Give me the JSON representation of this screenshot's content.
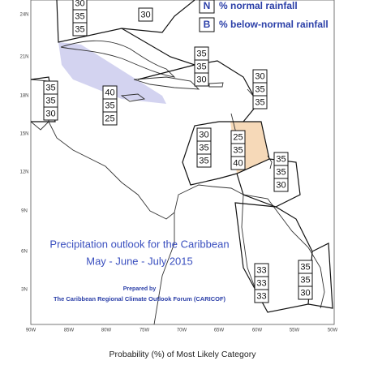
{
  "legend": {
    "n_key": "N",
    "n_text": "% normal rainfall",
    "b_key": "B",
    "b_text": "% below-normal rainfall"
  },
  "title": {
    "line1": "Precipitation outlook for the Caribbean",
    "line2": "May - June - July 2015",
    "prepared": "Prepared by",
    "forum": "The Caribbean Regional Climate Outlook Forum (CARICOF)"
  },
  "lat_labels": [
    "24N",
    "21N",
    "18N",
    "15N",
    "12N",
    "9N",
    "6N",
    "3N"
  ],
  "lon_labels": [
    "90W",
    "85W",
    "80W",
    "75W",
    "70W",
    "65W",
    "60W",
    "55W",
    "50W"
  ],
  "caption": "Probability (%) of Most Likely Category",
  "zones": [
    {
      "values": [
        30,
        35,
        35
      ]
    },
    {
      "values": [
        30
      ]
    },
    {
      "values": [
        40,
        35,
        25
      ]
    },
    {
      "values": [
        35,
        35,
        30
      ]
    },
    {
      "values": [
        35,
        35,
        30
      ]
    },
    {
      "values": [
        30,
        35,
        35
      ]
    },
    {
      "values": [
        30,
        35,
        35
      ]
    },
    {
      "values": [
        25,
        35,
        40
      ]
    },
    {
      "values": [
        35,
        35,
        30
      ]
    },
    {
      "values": [
        33,
        33,
        33
      ]
    },
    {
      "values": [
        35,
        35,
        30
      ]
    }
  ]
}
